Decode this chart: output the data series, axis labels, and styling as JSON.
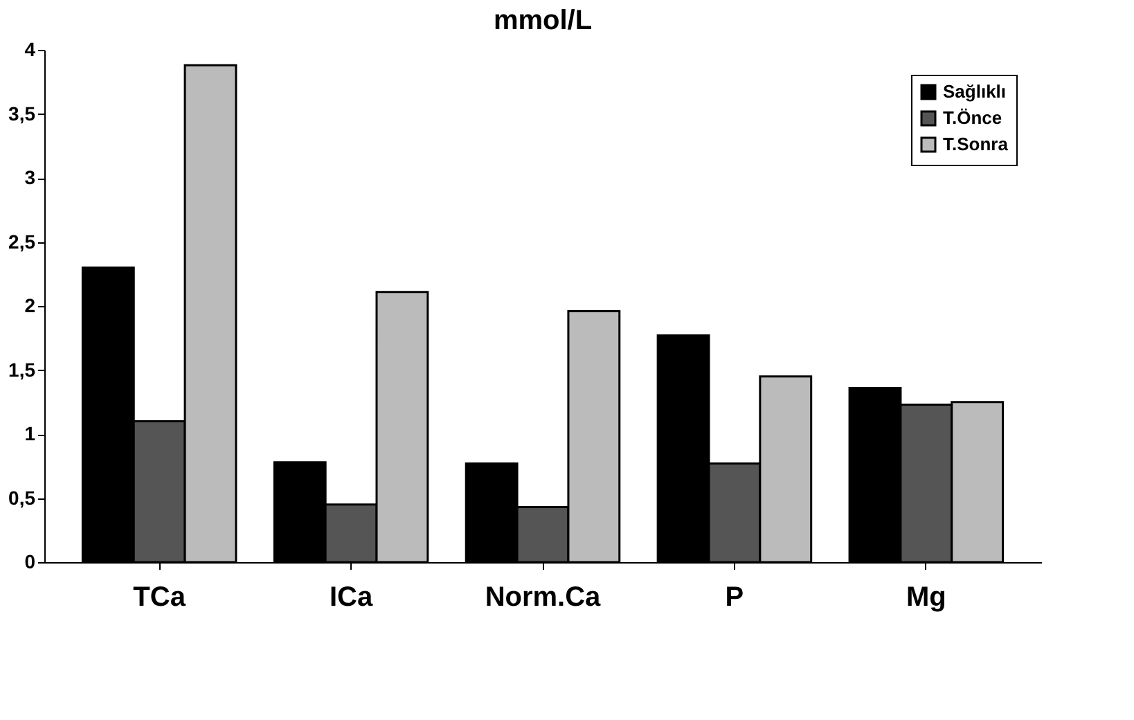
{
  "chart_data": {
    "type": "bar",
    "title": "mmol/L",
    "categories": [
      "TCa",
      "ICa",
      "Norm.Ca",
      "P",
      "Mg"
    ],
    "series": [
      {
        "name": "Sağlıklı",
        "color": "#000000",
        "values": [
          2.3,
          0.78,
          0.77,
          1.77,
          1.36
        ]
      },
      {
        "name": "T.Önce",
        "color": "#555555",
        "values": [
          1.1,
          0.45,
          0.43,
          0.77,
          1.23
        ]
      },
      {
        "name": "T.Sonra",
        "color": "#bbbbbb",
        "values": [
          3.88,
          2.11,
          1.96,
          1.45,
          1.25
        ]
      }
    ],
    "ylim": [
      0,
      4
    ],
    "yticks": [
      0,
      {
        "value": 0.5,
        "label": "0,5"
      },
      1,
      {
        "value": 1.5,
        "label": "1,5"
      },
      2,
      {
        "value": 2.5,
        "label": "2,5"
      },
      3,
      {
        "value": 3.5,
        "label": "3,5"
      },
      4
    ],
    "grid": false,
    "legend": "top right"
  }
}
